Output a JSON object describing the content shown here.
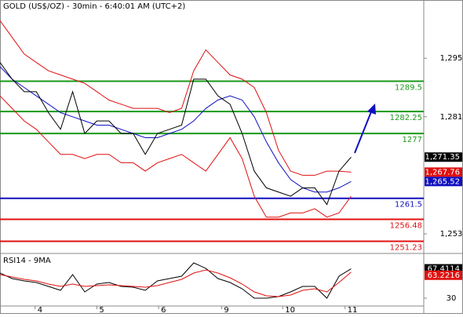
{
  "chart_data": [
    {
      "type": "line",
      "title": "GOLD (US$/OZ) - 30min - 6:40:01 AM (UTC+2)",
      "x": [
        0,
        2,
        4,
        6,
        8,
        10,
        12,
        14,
        16,
        18,
        20,
        22,
        24,
        26,
        28,
        30,
        32,
        34,
        36,
        38,
        40,
        42,
        44,
        46,
        48,
        50,
        52,
        54,
        56,
        58
      ],
      "xlim": [
        0,
        70
      ],
      "ylim": [
        1248.5,
        1306.3
      ],
      "yticks": [
        {
          "value": 1253,
          "label": "1,253"
        },
        {
          "value": 1281,
          "label": "1,281"
        },
        {
          "value": 1295,
          "label": "1,295"
        }
      ],
      "series": [
        {
          "color": "#e01010",
          "values": [
            1304,
            1300,
            1296,
            1294,
            1292,
            1291,
            1290,
            1289,
            1287,
            1285,
            1284,
            1283,
            1283,
            1283,
            1282,
            1283,
            1292,
            1297,
            1294,
            1291,
            1290,
            1288,
            1282,
            1273,
            1268,
            1267,
            1267,
            1268,
            1268,
            1267.76
          ]
        },
        {
          "color": "#e01010",
          "values": [
            1286,
            1283,
            1280,
            1278,
            1275,
            1272,
            1272,
            1271,
            1272,
            1272,
            1270,
            1270,
            1268,
            1270,
            1271,
            1272,
            1270,
            1268,
            1272,
            1276,
            1271,
            1262,
            1257,
            1257,
            1258,
            1258,
            1259,
            1257,
            1258,
            1262
          ]
        },
        {
          "color": "#1010c0",
          "values": [
            1293,
            1290,
            1288,
            1286,
            1284,
            1282,
            1281,
            1280,
            1279,
            1279,
            1278,
            1277,
            1276,
            1276,
            1277,
            1278,
            1280,
            1283,
            1285,
            1286,
            1285,
            1281,
            1275,
            1270,
            1266,
            1264,
            1263,
            1263,
            1264,
            1265.52
          ]
        },
        {
          "color": "#000000",
          "values": [
            1294,
            1290,
            1287,
            1287,
            1282,
            1278,
            1287,
            1277,
            1280,
            1280,
            1277,
            1277,
            1272,
            1277,
            1278,
            1279,
            1290,
            1290,
            1286,
            1284,
            1277,
            1268,
            1264,
            1263,
            1262,
            1264,
            1264,
            1260,
            1268,
            1271.35
          ]
        }
      ],
      "levels": [
        {
          "value": 1289.5,
          "color": "#1a9a1a"
        },
        {
          "value": 1282.25,
          "color": "#1a9a1a"
        },
        {
          "value": 1277,
          "color": "#1a9a1a"
        },
        {
          "value": 1261.5,
          "color": "#1010c0"
        },
        {
          "value": 1256.48,
          "color": "#e01010"
        },
        {
          "value": 1251.23,
          "color": "#e01010"
        }
      ],
      "price_tags": [
        {
          "value": 1271.35,
          "label": "1,271.35",
          "color": "#000000"
        },
        {
          "value": 1267.76,
          "label": "1,267.76",
          "color": "#e01010"
        },
        {
          "value": 1265.52,
          "label": "1,265.52",
          "color": "#1010c0"
        }
      ]
    },
    {
      "type": "line",
      "title": "RSI14 - 9MA",
      "x": [
        0,
        2,
        4,
        6,
        8,
        10,
        12,
        14,
        16,
        18,
        20,
        22,
        24,
        26,
        28,
        30,
        32,
        34,
        36,
        38,
        40,
        42,
        44,
        46,
        48,
        50,
        52,
        54,
        56,
        58
      ],
      "xlim": [
        0,
        70
      ],
      "ylim": [
        20,
        85
      ],
      "yticks": [
        30
      ],
      "xticks": [
        {
          "value": 5.8,
          "label": "4"
        },
        {
          "value": 16,
          "label": "5"
        },
        {
          "value": 26.2,
          "label": "6"
        },
        {
          "value": 36.6,
          "label": "9"
        },
        {
          "value": 46.7,
          "label": "10"
        },
        {
          "value": 57,
          "label": "11"
        }
      ],
      "series": [
        {
          "color": "#000000",
          "values": [
            62,
            55,
            52,
            50,
            45,
            40,
            60,
            38,
            48,
            50,
            45,
            44,
            40,
            52,
            55,
            58,
            75,
            68,
            55,
            50,
            42,
            30,
            30,
            32,
            38,
            45,
            45,
            30,
            58,
            67.41
          ]
        },
        {
          "color": "#e01010",
          "values": [
            60,
            57,
            54,
            52,
            48,
            45,
            48,
            45,
            46,
            47,
            46,
            45,
            44,
            46,
            50,
            54,
            62,
            66,
            62,
            56,
            48,
            38,
            33,
            32,
            34,
            40,
            42,
            38,
            50,
            63.22
          ]
        }
      ],
      "price_tags": [
        {
          "value": 67.4114,
          "color": "#000000"
        },
        {
          "value": 63.2216,
          "color": "#e01010"
        }
      ]
    }
  ]
}
